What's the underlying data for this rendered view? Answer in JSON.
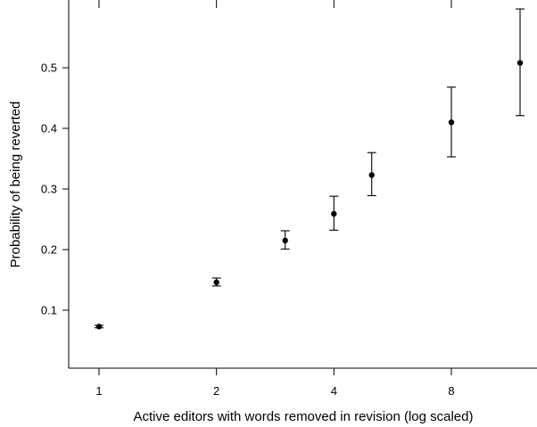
{
  "chart_data": {
    "type": "scatter",
    "title": "",
    "xlabel": "Active editors with words removed in revision (log scaled)",
    "ylabel": "Probability of being reverted",
    "x_scale": "log2",
    "xlim": [
      0.88,
      16
    ],
    "ylim": [
      0,
      0.6
    ],
    "x_ticks": [
      1,
      2,
      4,
      8
    ],
    "x_tick_labels": [
      "1",
      "2",
      "4",
      "8"
    ],
    "y_ticks": [
      0.1,
      0.2,
      0.3,
      0.4,
      0.5
    ],
    "y_tick_labels": [
      "0.1",
      "0.2",
      "0.3",
      "0.4",
      "0.5"
    ],
    "grid": false,
    "points": [
      {
        "x": 1,
        "y": 0.073,
        "ymin": 0.071,
        "ymax": 0.075
      },
      {
        "x": 2,
        "y": 0.146,
        "ymin": 0.14,
        "ymax": 0.153
      },
      {
        "x": 3,
        "y": 0.215,
        "ymin": 0.201,
        "ymax": 0.231
      },
      {
        "x": 4,
        "y": 0.259,
        "ymin": 0.232,
        "ymax": 0.288
      },
      {
        "x": 5,
        "y": 0.323,
        "ymin": 0.289,
        "ymax": 0.36
      },
      {
        "x": 8,
        "y": 0.41,
        "ymin": 0.353,
        "ymax": 0.468
      },
      {
        "x": 12,
        "y": 0.508,
        "ymin": 0.421,
        "ymax": 0.597
      }
    ]
  }
}
